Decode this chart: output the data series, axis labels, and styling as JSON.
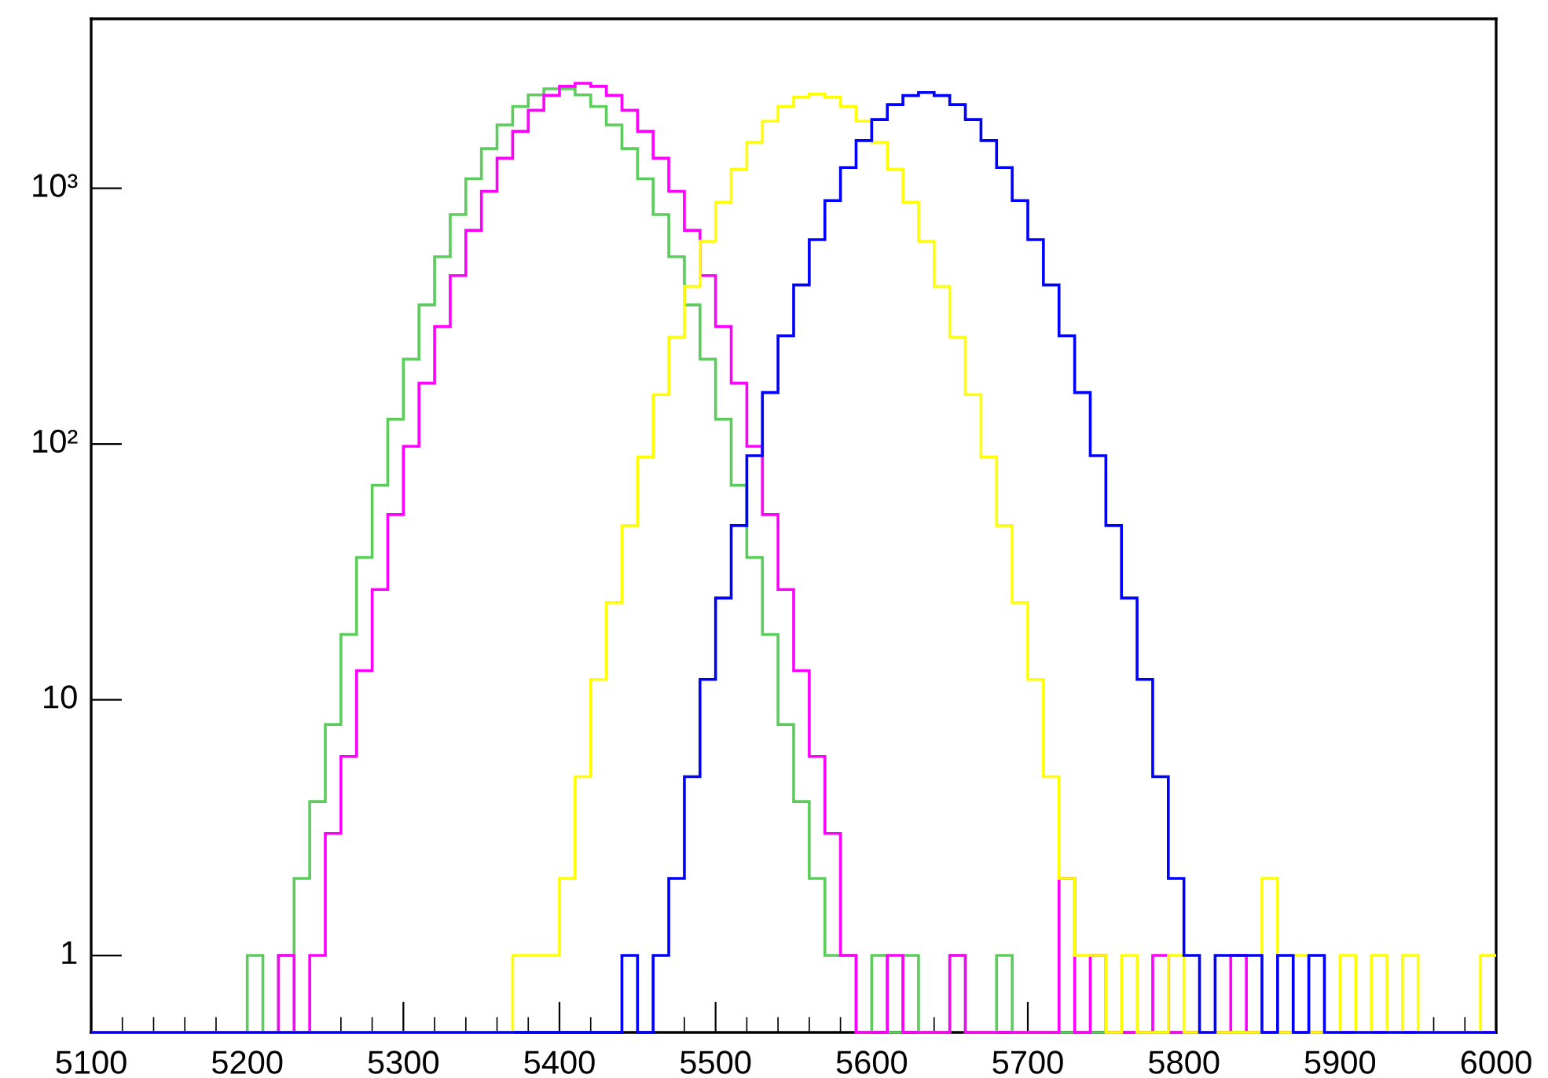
{
  "chart_data": {
    "type": "histogram",
    "bins": [
      5100,
      5110,
      5120,
      5130,
      5140,
      5150,
      5160,
      5170,
      5180,
      5190,
      5200,
      5210,
      5220,
      5230,
      5240,
      5250,
      5260,
      5270,
      5280,
      5290,
      5300,
      5310,
      5320,
      5330,
      5340,
      5350,
      5360,
      5370,
      5380,
      5390,
      5400,
      5410,
      5420,
      5430,
      5440,
      5450,
      5460,
      5470,
      5480,
      5490,
      5500,
      5510,
      5520,
      5530,
      5540,
      5550,
      5560,
      5570,
      5580,
      5590,
      5600,
      5610,
      5620,
      5630,
      5640,
      5650,
      5660,
      5670,
      5680,
      5690,
      5700,
      5710,
      5720,
      5730,
      5740,
      5750,
      5760,
      5770,
      5780,
      5790,
      5800,
      5810,
      5820,
      5830,
      5840,
      5850,
      5860,
      5870,
      5880,
      5890,
      5900,
      5910,
      5920,
      5930,
      5940,
      5950,
      5960,
      5970,
      5980,
      5990,
      6000
    ],
    "series": [
      {
        "color": "#5ccc5c",
        "values": [
          null,
          null,
          null,
          null,
          null,
          null,
          null,
          null,
          null,
          null,
          1,
          null,
          1,
          2,
          4,
          8,
          18,
          36,
          69,
          125,
          215,
          350,
          540,
          790,
          1090,
          1430,
          1770,
          2090,
          2320,
          2450,
          2450,
          2320,
          2090,
          1770,
          1430,
          1090,
          790,
          540,
          350,
          215,
          125,
          69,
          36,
          18,
          8,
          4,
          2,
          1,
          1,
          null,
          1,
          null,
          1,
          null,
          null,
          1,
          null,
          null,
          1,
          null,
          null,
          null,
          null,
          null,
          null,
          null,
          null,
          null,
          null,
          null,
          null,
          null,
          null,
          null,
          null,
          null,
          null,
          null,
          null,
          null,
          null,
          null,
          null,
          null,
          null,
          null,
          null,
          null,
          null,
          null
        ]
      },
      {
        "color": "#ff00ff",
        "values": [
          null,
          null,
          null,
          null,
          null,
          null,
          null,
          null,
          null,
          null,
          null,
          null,
          1,
          null,
          1,
          3,
          6,
          13,
          27,
          53,
          98,
          173,
          288,
          456,
          685,
          973,
          1311,
          1671,
          2019,
          2310,
          2505,
          2575,
          2505,
          2310,
          2019,
          1671,
          1311,
          973,
          685,
          456,
          288,
          173,
          98,
          53,
          27,
          13,
          6,
          3,
          1,
          null,
          null,
          1,
          null,
          null,
          null,
          1,
          null,
          null,
          null,
          null,
          null,
          null,
          2,
          null,
          1,
          null,
          null,
          null,
          1,
          null,
          null,
          null,
          null,
          1,
          null,
          null,
          null,
          null,
          null,
          null,
          null,
          null,
          null,
          null,
          null,
          null,
          null,
          null,
          null,
          null
        ]
      },
      {
        "color": "#ffff00",
        "values": [
          null,
          null,
          null,
          null,
          null,
          null,
          null,
          null,
          null,
          null,
          null,
          null,
          null,
          null,
          null,
          null,
          null,
          null,
          null,
          null,
          null,
          null,
          null,
          null,
          null,
          null,
          null,
          1,
          1,
          1,
          2,
          5,
          12,
          24,
          48,
          89,
          156,
          262,
          413,
          621,
          883,
          1189,
          1515,
          1831,
          2094,
          2272,
          2335,
          2272,
          2094,
          1831,
          1515,
          1189,
          883,
          621,
          413,
          262,
          156,
          89,
          48,
          24,
          12,
          5,
          2,
          1,
          1,
          null,
          1,
          null,
          null,
          1,
          null,
          null,
          null,
          null,
          null,
          2,
          null,
          1,
          null,
          null,
          1,
          null,
          1,
          null,
          1,
          null,
          null,
          null,
          null,
          1
        ]
      },
      {
        "color": "#0000ff",
        "values": [
          null,
          null,
          null,
          null,
          null,
          null,
          null,
          null,
          null,
          null,
          null,
          null,
          null,
          null,
          null,
          null,
          null,
          null,
          null,
          null,
          null,
          null,
          null,
          null,
          null,
          null,
          null,
          null,
          null,
          null,
          null,
          null,
          null,
          null,
          1,
          null,
          1,
          2,
          5,
          12,
          25,
          48,
          90,
          159,
          265,
          419,
          630,
          896,
          1206,
          1538,
          1858,
          2126,
          2306,
          2370,
          2306,
          2126,
          1858,
          1538,
          1206,
          896,
          630,
          419,
          265,
          159,
          90,
          48,
          25,
          12,
          5,
          2,
          1,
          null,
          1,
          1,
          1,
          null,
          1,
          null,
          1,
          null,
          null,
          null,
          null,
          null,
          null,
          null,
          null,
          null,
          null,
          null
        ]
      }
    ],
    "log": "y",
    "xlim": [
      5100,
      6000
    ],
    "xticks": [
      5100,
      5200,
      5300,
      5400,
      5500,
      5600,
      5700,
      5800,
      5900,
      6000
    ],
    "ylim": [
      0.5,
      4600
    ],
    "yticks": [
      1,
      10,
      {
        "value": 100,
        "label": "10²"
      },
      {
        "value": 1000,
        "label": "10³"
      }
    ]
  }
}
